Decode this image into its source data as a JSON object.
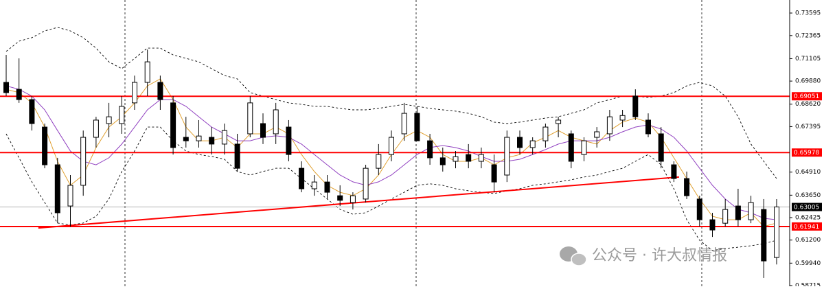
{
  "chart_data": {
    "type": "candlestick",
    "ylim": [
      0.58678,
      0.74307
    ],
    "yticks": [
      0.73595,
      0.72365,
      0.71105,
      {
        "value": 0.6988,
        "label": "0.69880"
      },
      {
        "value": 0.6862,
        "label": "0.68620"
      },
      0.67395,
      {
        "value": 0.6491,
        "label": "0.64910"
      },
      {
        "value": 0.6365,
        "label": "0.63650"
      },
      0.62425,
      {
        "value": 0.612,
        "label": "0.61200"
      },
      {
        "value": 0.5994,
        "label": "0.59940"
      },
      0.58715
    ],
    "up_color": "#ffffff",
    "down_color": "#000000",
    "open": [
      0.6981,
      0.6943,
      0.6887,
      0.6737,
      0.6531,
      0.6306,
      0.6419,
      0.6681,
      0.6756,
      0.6756,
      0.6869,
      0.6981,
      0.6981,
      0.6869,
      0.6681,
      0.6662,
      0.6681,
      0.6644,
      0.6644,
      0.67,
      0.6756,
      0.67,
      0.6737,
      0.6512,
      0.64,
      0.6437,
      0.6362,
      0.6325,
      0.6344,
      0.6512,
      0.6587,
      0.67,
      0.6812,
      0.6662,
      0.6569,
      0.655,
      0.6587,
      0.655,
      0.6531,
      0.6475,
      0.6681,
      0.6625,
      0.6662,
      0.6756,
      0.67,
      0.6587,
      0.6681,
      0.67,
      0.6775,
      0.6906,
      0.6775,
      0.67,
      0.6531,
      0.6456,
      0.6344,
      0.6231,
      0.6212,
      0.6306,
      0.6231,
      0.6287,
      0.6025
    ],
    "high": [
      0.7131,
      0.7112,
      0.6906,
      0.6756,
      0.6569,
      0.6475,
      0.6718,
      0.6793,
      0.6869,
      0.6906,
      0.7018,
      0.716,
      0.7018,
      0.6906,
      0.6793,
      0.6775,
      0.6737,
      0.6756,
      0.67,
      0.6906,
      0.6812,
      0.6869,
      0.6775,
      0.655,
      0.6475,
      0.6475,
      0.6419,
      0.6381,
      0.6531,
      0.6644,
      0.6718,
      0.6869,
      0.685,
      0.67,
      0.6625,
      0.6606,
      0.6644,
      0.6625,
      0.6587,
      0.6718,
      0.6718,
      0.6681,
      0.6756,
      0.6793,
      0.6718,
      0.6681,
      0.6737,
      0.6831,
      0.6831,
      0.6943,
      0.6812,
      0.6737,
      0.655,
      0.6494,
      0.6362,
      0.6269,
      0.6344,
      0.64,
      0.6362,
      0.6344,
      0.6344
    ],
    "low": [
      0.6906,
      0.6869,
      0.6718,
      0.6512,
      0.6212,
      0.6194,
      0.6362,
      0.6625,
      0.6681,
      0.67,
      0.6831,
      0.6906,
      0.6831,
      0.6587,
      0.6625,
      0.6625,
      0.6587,
      0.6587,
      0.6494,
      0.6681,
      0.6644,
      0.6644,
      0.655,
      0.6381,
      0.6362,
      0.6344,
      0.6306,
      0.6287,
      0.6325,
      0.6475,
      0.655,
      0.6662,
      0.6662,
      0.6531,
      0.6494,
      0.6512,
      0.6512,
      0.6512,
      0.6381,
      0.6437,
      0.6587,
      0.6587,
      0.6625,
      0.6681,
      0.6512,
      0.655,
      0.6625,
      0.6662,
      0.6737,
      0.6775,
      0.6681,
      0.6512,
      0.6437,
      0.6344,
      0.6194,
      0.6137,
      0.6194,
      0.6194,
      0.6212,
      0.5913,
      0.5987
    ],
    "close": [
      0.6925,
      0.6887,
      0.6756,
      0.6531,
      0.6269,
      0.6419,
      0.6681,
      0.6775,
      0.6793,
      0.685,
      0.6981,
      0.7093,
      0.6887,
      0.6625,
      0.6662,
      0.6688,
      0.6644,
      0.6718,
      0.6512,
      0.6869,
      0.6681,
      0.6831,
      0.6587,
      0.64,
      0.6437,
      0.6381,
      0.6337,
      0.6362,
      0.6512,
      0.6587,
      0.6681,
      0.6812,
      0.6662,
      0.6569,
      0.6531,
      0.6575,
      0.655,
      0.6587,
      0.6437,
      0.6681,
      0.6625,
      0.6662,
      0.6737,
      0.6775,
      0.655,
      0.6662,
      0.6711,
      0.6793,
      0.68,
      0.6793,
      0.67,
      0.655,
      0.6456,
      0.6362,
      0.6231,
      0.6175,
      0.6287,
      0.6231,
      0.6325,
      0.6006,
      0.6301
    ],
    "overlays": [
      {
        "color": "#000000",
        "dash": true,
        "values": [
          0.715,
          0.7206,
          0.7225,
          0.7262,
          0.7281,
          0.7262,
          0.7225,
          0.7168,
          0.7093,
          0.7056,
          0.7112,
          0.7168,
          0.7168,
          0.7131,
          0.7112,
          0.7093,
          0.7056,
          0.7018,
          0.7,
          0.6925,
          0.6906,
          0.6887,
          0.6869,
          0.6861,
          0.685,
          0.685,
          0.6839,
          0.6831,
          0.6831,
          0.6839,
          0.685,
          0.6861,
          0.685,
          0.6839,
          0.6831,
          0.6824,
          0.6812,
          0.6793,
          0.6764,
          0.6756,
          0.6764,
          0.6775,
          0.6786,
          0.6793,
          0.6812,
          0.6831,
          0.6869,
          0.6887,
          0.6906,
          0.6906,
          0.6899,
          0.6906,
          0.6925,
          0.6962,
          0.6981,
          0.6962,
          0.6906,
          0.6793,
          0.6644,
          0.655,
          0.6456
        ]
      },
      {
        "color": "#000000",
        "dash": true,
        "values": [
          0.67,
          0.6569,
          0.6438,
          0.6325,
          0.6213,
          0.6202,
          0.6213,
          0.625,
          0.6344,
          0.6494,
          0.6606,
          0.6737,
          0.6737,
          0.6662,
          0.6606,
          0.6587,
          0.6576,
          0.6561,
          0.6494,
          0.6475,
          0.6494,
          0.6512,
          0.6512,
          0.6456,
          0.64,
          0.6344,
          0.6288,
          0.6261,
          0.6269,
          0.6306,
          0.6344,
          0.6381,
          0.6419,
          0.6427,
          0.6419,
          0.64,
          0.6389,
          0.6381,
          0.6374,
          0.6389,
          0.64,
          0.6419,
          0.6427,
          0.6438,
          0.6449,
          0.6464,
          0.6475,
          0.6494,
          0.6512,
          0.655,
          0.6587,
          0.6531,
          0.64,
          0.6231,
          0.6119,
          0.6063,
          0.6074,
          0.6081,
          0.6089,
          0.61,
          0.6119
        ]
      },
      {
        "color": "#e0a030",
        "dash": false,
        "values": [
          0.6943,
          0.6925,
          0.6869,
          0.6737,
          0.655,
          0.6419,
          0.6475,
          0.6625,
          0.6737,
          0.6793,
          0.6869,
          0.6962,
          0.7,
          0.6887,
          0.6737,
          0.6662,
          0.6662,
          0.6681,
          0.6625,
          0.67,
          0.67,
          0.6737,
          0.67,
          0.6587,
          0.6494,
          0.6419,
          0.6381,
          0.6363,
          0.64,
          0.6475,
          0.6587,
          0.6681,
          0.6718,
          0.6681,
          0.6587,
          0.655,
          0.655,
          0.6569,
          0.6531,
          0.6569,
          0.6587,
          0.6651,
          0.6681,
          0.6718,
          0.6681,
          0.6662,
          0.6644,
          0.6718,
          0.6764,
          0.6786,
          0.6764,
          0.6681,
          0.6569,
          0.6456,
          0.6344,
          0.625,
          0.6231,
          0.6231,
          0.6269,
          0.6194,
          0.6213
        ]
      },
      {
        "color": "#9040c0",
        "dash": false,
        "values": [
          0.6962,
          0.6943,
          0.6906,
          0.6831,
          0.6718,
          0.6606,
          0.655,
          0.6531,
          0.6569,
          0.6644,
          0.6737,
          0.6831,
          0.6887,
          0.6887,
          0.685,
          0.6793,
          0.6737,
          0.67,
          0.6662,
          0.6662,
          0.6681,
          0.6689,
          0.6681,
          0.6644,
          0.6587,
          0.6531,
          0.6475,
          0.6438,
          0.6419,
          0.6438,
          0.6475,
          0.6531,
          0.6587,
          0.6625,
          0.6636,
          0.6625,
          0.6606,
          0.6576,
          0.655,
          0.655,
          0.6561,
          0.6587,
          0.6614,
          0.6644,
          0.6662,
          0.6662,
          0.6662,
          0.6681,
          0.6711,
          0.6737,
          0.6749,
          0.6726,
          0.6681,
          0.6606,
          0.6512,
          0.6419,
          0.6344,
          0.6288,
          0.6269,
          0.6239,
          0.6231
        ]
      }
    ],
    "levels": [
      {
        "value": 0.69051,
        "color": "#ff0000",
        "label_fill": "#ff0000"
      },
      {
        "value": 0.65978,
        "color": "#ff0000",
        "label_fill": "#ff0000"
      },
      {
        "value": 0.63005,
        "color": "#b0b0b0",
        "label_fill": "#000000"
      },
      {
        "value": 0.61941,
        "color": "#ff0000",
        "label_fill": "#ff0000"
      }
    ],
    "trendline": {
      "color": "#ff0000",
      "x": [
        2.5,
        52.4
      ],
      "y": [
        0.6186,
        0.6464
      ]
    },
    "watermark": "公众号 · 许大叔情报"
  }
}
